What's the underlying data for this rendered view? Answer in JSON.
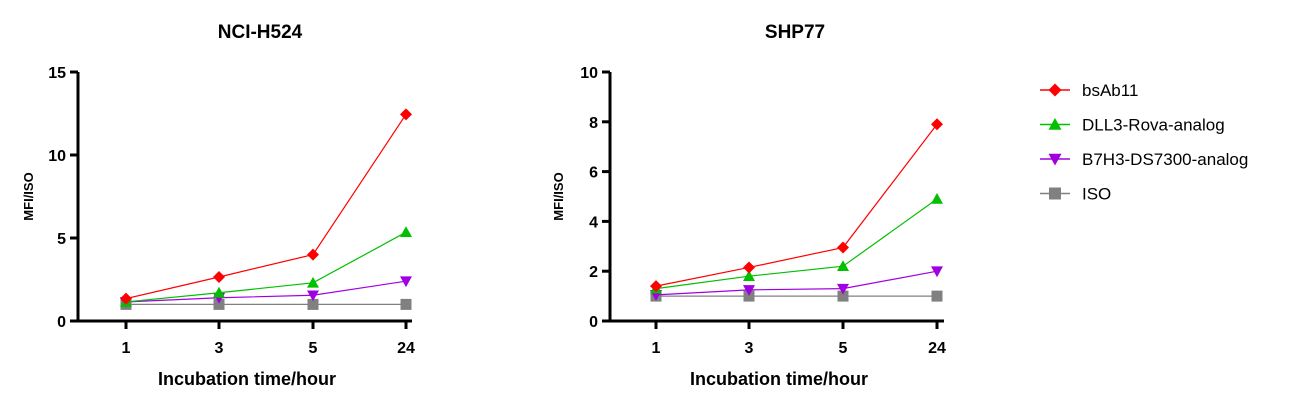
{
  "chart_data": [
    {
      "type": "line",
      "title": "NCI-H524",
      "xlabel": "Incubation time/hour",
      "ylabel": "MFI/ISO",
      "categories": [
        "1",
        "3",
        "5",
        "24"
      ],
      "ylim": [
        0,
        15
      ],
      "yticks": [
        "0",
        "5",
        "10",
        "15"
      ],
      "grid": false,
      "series": [
        {
          "name": "bsAb11",
          "values": [
            1.35,
            2.65,
            4.0,
            12.45
          ]
        },
        {
          "name": "DLL3-Rova-analog",
          "values": [
            1.15,
            1.7,
            2.3,
            5.35
          ]
        },
        {
          "name": "B7H3-DS7300-analog",
          "values": [
            1.15,
            1.4,
            1.55,
            2.4
          ]
        },
        {
          "name": "ISO",
          "values": [
            1.0,
            1.0,
            1.0,
            1.0
          ]
        }
      ]
    },
    {
      "type": "line",
      "title": "SHP77",
      "xlabel": "Incubation time/hour",
      "ylabel": "MFI/ISO",
      "categories": [
        "1",
        "3",
        "5",
        "24"
      ],
      "ylim": [
        0,
        10
      ],
      "yticks": [
        "0",
        "2",
        "4",
        "6",
        "8",
        "10"
      ],
      "grid": false,
      "series": [
        {
          "name": "bsAb11",
          "values": [
            1.4,
            2.15,
            2.95,
            7.9
          ]
        },
        {
          "name": "DLL3-Rova-analog",
          "values": [
            1.3,
            1.8,
            2.2,
            4.9
          ]
        },
        {
          "name": "B7H3-DS7300-analog",
          "values": [
            1.05,
            1.25,
            1.3,
            2.0
          ]
        },
        {
          "name": "ISO",
          "values": [
            1.0,
            1.0,
            1.0,
            1.0
          ]
        }
      ]
    }
  ],
  "legend": {
    "placement": "right",
    "items": [
      {
        "label": "bsAb11",
        "color": "#ff0000",
        "marker": "diamond"
      },
      {
        "label": "DLL3-Rova-analog",
        "color": "#00c000",
        "marker": "triangle-up"
      },
      {
        "label": "B7H3-DS7300-analog",
        "color": "#a000e0",
        "marker": "triangle-down"
      },
      {
        "label": "ISO",
        "color": "#808080",
        "marker": "square"
      }
    ]
  }
}
